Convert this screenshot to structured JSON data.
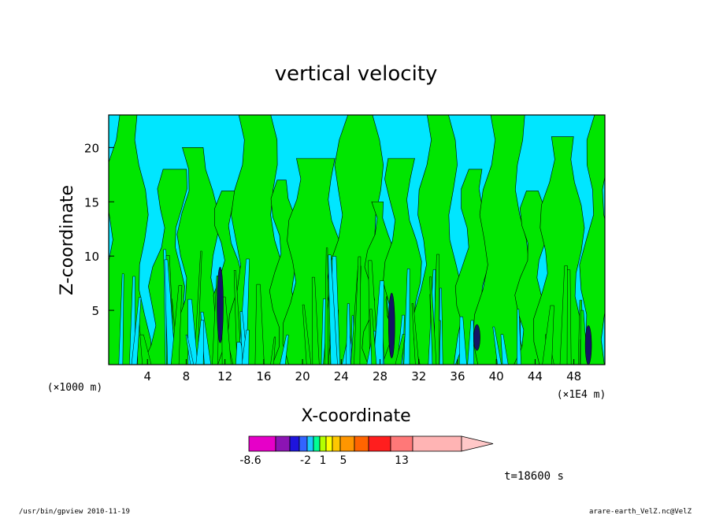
{
  "chart_data": {
    "type": "contour",
    "title": "vertical velocity",
    "xlabel": "X-coordinate",
    "ylabel": "Z-coordinate",
    "x_unit_left": "(×1000 m)",
    "x_unit_right": "(×1E4 m)",
    "x_ticks": [
      "4",
      "8",
      "12",
      "16",
      "20",
      "24",
      "28",
      "32",
      "36",
      "40",
      "44",
      "48"
    ],
    "y_ticks": [
      "5",
      "10",
      "15",
      "20"
    ],
    "xlim": [
      0,
      51.2
    ],
    "ylim": [
      0,
      23
    ],
    "colorbar": {
      "levels": [
        -8.6,
        -6.2,
        -3.8,
        -2.6,
        -2,
        -1,
        0,
        1,
        2,
        3,
        5,
        7,
        9,
        13,
        19
      ],
      "labels": [
        "-8.6",
        "-2",
        "1",
        "5",
        "13"
      ],
      "colors": [
        "#e600c8",
        "#8c14b4",
        "#1e14dc",
        "#3264ff",
        "#1ec8ff",
        "#00ff96",
        "#b4ff00",
        "#ffff00",
        "#ffc800",
        "#ff9600",
        "#ff6400",
        "#ff1e1e",
        "#ff7878",
        "#ffb4b4",
        "#ffc8c8"
      ]
    },
    "dominant_colors": {
      "negative": "#00e6ff",
      "positive": "#00e600",
      "strong_negative": "#141464"
    },
    "time_label": "t=18600 s"
  },
  "footer": {
    "left": "/usr/bin/gpview   2010-11-19",
    "right": "arare-earth_VelZ.nc@VelZ"
  }
}
